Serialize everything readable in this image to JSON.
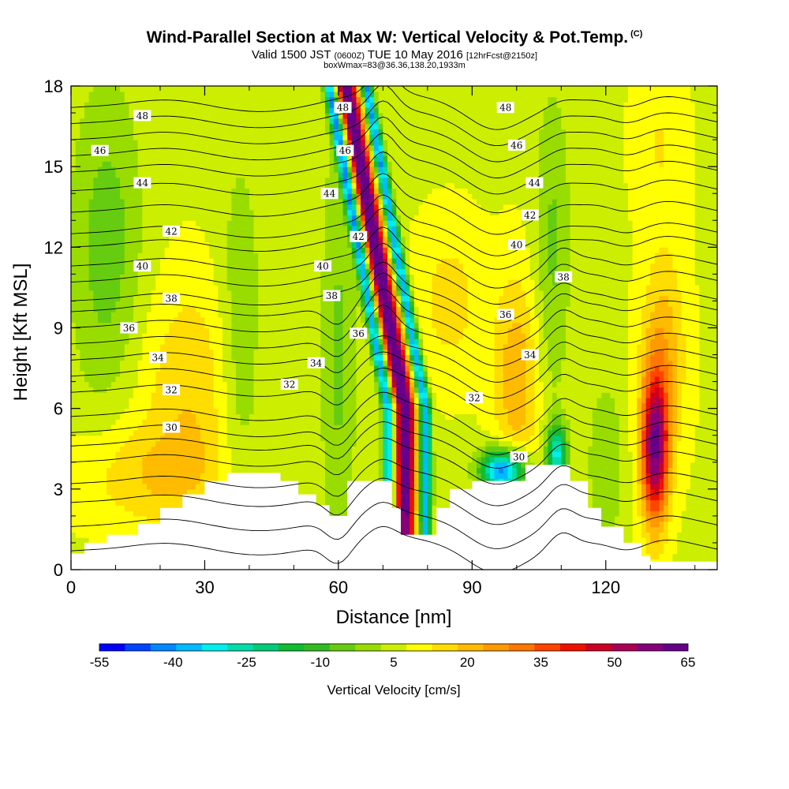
{
  "header": {
    "title": "Wind-Parallel Section at Max W: Vertical Velocity & Pot.Temp.",
    "title_suffix": "(C)",
    "subtitle_part1": "Valid 1500 JST",
    "subtitle_part2": "(0600Z)",
    "subtitle_part3": "TUE 10 May 2016",
    "subtitle_part4": "[12hrFcst@2150z]",
    "note": "boxWmax=83@36.36,138.20,1933m"
  },
  "chart_data": {
    "type": "heatmap",
    "xlabel": "Distance [nm]",
    "ylabel": "Height [Kft MSL]",
    "xlim": [
      0,
      145
    ],
    "ylim": [
      0,
      18
    ],
    "x_ticks": [
      "0",
      "30",
      "60",
      "90",
      "120"
    ],
    "y_ticks": [
      "0",
      "3",
      "6",
      "9",
      "12",
      "15",
      "18"
    ],
    "colorbar": {
      "title": "Vertical Velocity [cm/s]",
      "tick_labels": [
        "-55",
        "-40",
        "-25",
        "-10",
        "5",
        "20",
        "35",
        "50",
        "65"
      ],
      "colors": [
        "#0000ff",
        "#0044ff",
        "#0088ff",
        "#00bbff",
        "#00eeee",
        "#00ddaa",
        "#00cc77",
        "#11bb33",
        "#33bb22",
        "#66cc11",
        "#99dd00",
        "#ccee00",
        "#ffff00",
        "#ffdd00",
        "#ffbb00",
        "#ff9900",
        "#ff7700",
        "#ff4400",
        "#ee1100",
        "#cc0022",
        "#aa0055",
        "#880077",
        "#660088"
      ]
    },
    "terrain_kft": [
      [
        0,
        0.6
      ],
      [
        1,
        0.6
      ],
      [
        3,
        1.0
      ],
      [
        8,
        1.3
      ],
      [
        15,
        1.7
      ],
      [
        20,
        2.3
      ],
      [
        25,
        2.8
      ],
      [
        30,
        3.3
      ],
      [
        35,
        3.6
      ],
      [
        43,
        3.6
      ],
      [
        47,
        3.3
      ],
      [
        51,
        2.8
      ],
      [
        55,
        2.4
      ],
      [
        58,
        2.0
      ],
      [
        62,
        3.3
      ],
      [
        70,
        3.3
      ],
      [
        72,
        2.3
      ],
      [
        74,
        1.3
      ],
      [
        76,
        1.3
      ],
      [
        80,
        1.3
      ],
      [
        82,
        2.3
      ],
      [
        85,
        3.0
      ],
      [
        90,
        3.3
      ],
      [
        97,
        3.3
      ],
      [
        102,
        3.9
      ],
      [
        110,
        3.9
      ],
      [
        112,
        3.3
      ],
      [
        116,
        2.3
      ],
      [
        119,
        1.6
      ],
      [
        124,
        1.0
      ],
      [
        128,
        0.5
      ],
      [
        130,
        0.3
      ],
      [
        135,
        0.3
      ],
      [
        145,
        0.3
      ]
    ],
    "theta_contours": [
      {
        "label": "30",
        "base_kft": 5.3
      },
      {
        "label": "32",
        "base_kft": 6.8
      },
      {
        "label": "34",
        "base_kft": 8.0
      },
      {
        "label": "36",
        "base_kft": 9.2
      },
      {
        "label": "38",
        "base_kft": 10.2
      },
      {
        "label": "40",
        "base_kft": 11.5
      },
      {
        "label": "42",
        "base_kft": 12.7
      },
      {
        "label": "44",
        "base_kft": 14.3
      },
      {
        "label": "46",
        "base_kft": 15.6
      },
      {
        "label": "48",
        "base_kft": 16.8
      }
    ],
    "contour_label_points": [
      {
        "label": "48",
        "x": 16,
        "y": 16.9
      },
      {
        "label": "46",
        "x": 6.5,
        "y": 15.6
      },
      {
        "label": "44",
        "x": 16,
        "y": 14.4
      },
      {
        "label": "42",
        "x": 22.5,
        "y": 12.6
      },
      {
        "label": "40",
        "x": 16,
        "y": 11.3
      },
      {
        "label": "38",
        "x": 22.5,
        "y": 10.1
      },
      {
        "label": "36",
        "x": 13,
        "y": 9.0
      },
      {
        "label": "34",
        "x": 19.5,
        "y": 7.9
      },
      {
        "label": "32",
        "x": 22.5,
        "y": 6.7
      },
      {
        "label": "30",
        "x": 22.5,
        "y": 5.3
      },
      {
        "label": "48",
        "x": 61,
        "y": 17.2
      },
      {
        "label": "46",
        "x": 61.5,
        "y": 15.6
      },
      {
        "label": "44",
        "x": 58,
        "y": 14.0
      },
      {
        "label": "42",
        "x": 64.5,
        "y": 12.4
      },
      {
        "label": "40",
        "x": 56.5,
        "y": 11.3
      },
      {
        "label": "38",
        "x": 58.5,
        "y": 10.2
      },
      {
        "label": "36",
        "x": 64.5,
        "y": 8.8
      },
      {
        "label": "34",
        "x": 55,
        "y": 7.7
      },
      {
        "label": "32",
        "x": 49,
        "y": 6.9
      },
      {
        "label": "48",
        "x": 97.5,
        "y": 17.2
      },
      {
        "label": "46",
        "x": 100,
        "y": 15.8
      },
      {
        "label": "44",
        "x": 104,
        "y": 14.4
      },
      {
        "label": "42",
        "x": 103,
        "y": 13.2
      },
      {
        "label": "40",
        "x": 100,
        "y": 12.1
      },
      {
        "label": "38",
        "x": 110.5,
        "y": 10.9
      },
      {
        "label": "36",
        "x": 97.5,
        "y": 9.5
      },
      {
        "label": "34",
        "x": 103,
        "y": 8.0
      },
      {
        "label": "32",
        "x": 90.5,
        "y": 6.4
      },
      {
        "label": "30",
        "x": 100.5,
        "y": 4.2
      }
    ]
  }
}
